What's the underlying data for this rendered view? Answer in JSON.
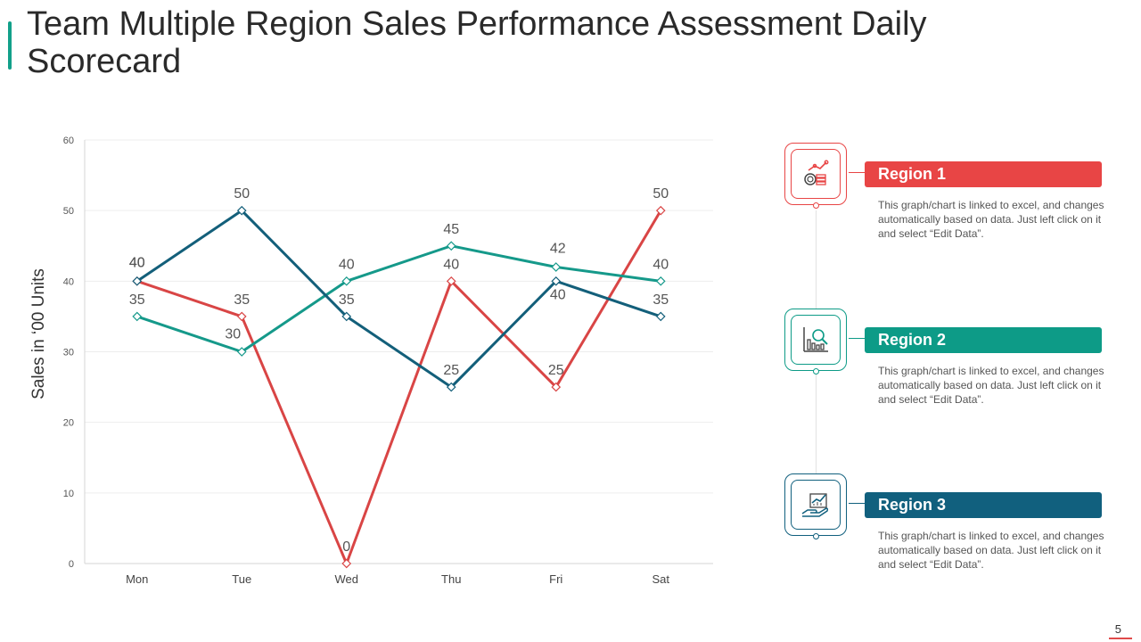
{
  "title": "Team Multiple Region Sales Performance Assessment  Daily Scorecard",
  "page_number": "5",
  "colors": {
    "region1": "#e84545",
    "region2": "#0d9b87",
    "region3": "#11607e",
    "accent": "#12a08a"
  },
  "legend": [
    {
      "label": "Region 1",
      "description": "This graph/chart is linked to excel, and changes automatically based on data. Just left click on it and select “Edit Data”.",
      "icon": "coins-chart-icon"
    },
    {
      "label": "Region 2",
      "description": "This graph/chart is linked to excel, and changes automatically based on data. Just left click on it and select “Edit Data”.",
      "icon": "bar-chart-magnifier-icon"
    },
    {
      "label": "Region 3",
      "description": "This graph/chart is linked to excel, and changes automatically based on data. Just left click on it and select “Edit Data”.",
      "icon": "hand-growth-chart-icon"
    }
  ],
  "chart_data": {
    "type": "line",
    "categories": [
      "Mon",
      "Tue",
      "Wed",
      "Thu",
      "Fri",
      "Sat"
    ],
    "series": [
      {
        "name": "Region 1",
        "color": "#d94545",
        "values": [
          40,
          35,
          0,
          40,
          25,
          50
        ]
      },
      {
        "name": "Region 2",
        "color": "#15998a",
        "values": [
          35,
          30,
          40,
          45,
          42,
          40
        ]
      },
      {
        "name": "Region 3",
        "color": "#135f7a",
        "values": [
          40,
          50,
          35,
          25,
          40,
          35
        ]
      }
    ],
    "ylabel": "Sales in ‘00 Units",
    "xlabel": "",
    "ylim": [
      0,
      60
    ],
    "yticks": [
      0,
      10,
      20,
      30,
      40,
      50,
      60
    ],
    "grid": true,
    "data_labels": true
  }
}
